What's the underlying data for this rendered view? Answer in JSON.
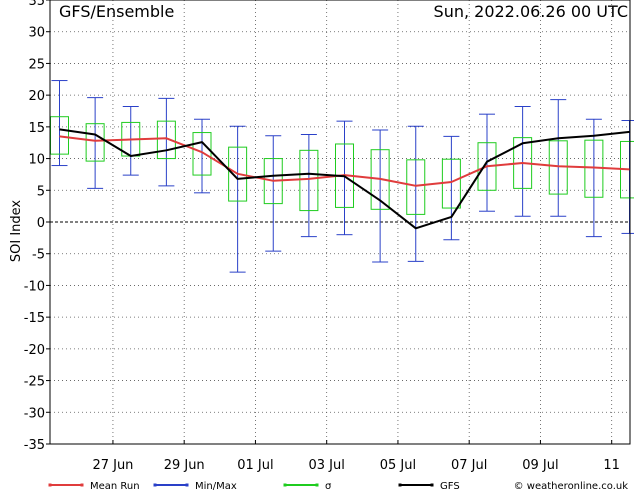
{
  "header": {
    "title": "GFS/Ensemble",
    "date": "Sun, 2022.06.26   00 UTC"
  },
  "credit": "© weatheronline.co.uk",
  "colors": {
    "mean": "#e03c3c",
    "minmax": "#2a40c8",
    "sigma": "#1fcc1f",
    "gfs": "#000000",
    "grid": "#555555"
  },
  "legend": [
    {
      "key": "mean",
      "label": "Mean Run",
      "color": "#e03c3c"
    },
    {
      "key": "minmax",
      "label": "Min/Max",
      "color": "#2a40c8"
    },
    {
      "key": "sigma",
      "label": "σ",
      "color": "#1fcc1f"
    },
    {
      "key": "gfs",
      "label": "GFS",
      "color": "#000000"
    }
  ],
  "chart_data": {
    "type": "line",
    "ylabel": "SOI Index",
    "ylim": [
      -35,
      35
    ],
    "yticks": [
      -35,
      -30,
      -25,
      -20,
      -15,
      -10,
      -5,
      0,
      5,
      10,
      15,
      20,
      25,
      30,
      35
    ],
    "xlim": [
      0,
      16
    ],
    "xticks": [
      {
        "x": 1.5,
        "label": "27 Jun"
      },
      {
        "x": 3.5,
        "label": "29 Jun"
      },
      {
        "x": 5.5,
        "label": "01 Jul"
      },
      {
        "x": 7.5,
        "label": "03 Jul"
      },
      {
        "x": 9.5,
        "label": "05 Jul"
      },
      {
        "x": 11.5,
        "label": "07 Jul"
      },
      {
        "x": 13.5,
        "label": "09 Jul"
      },
      {
        "x": 15.5,
        "label": "11"
      }
    ],
    "gridlines": "dotted",
    "zero_line": "dashed",
    "series": [
      {
        "name": "Mean Run",
        "key": "mean",
        "kind": "line",
        "x": [
          0,
          1,
          2,
          3,
          4,
          5,
          6,
          7,
          8,
          9,
          10,
          11,
          12,
          13,
          14,
          15,
          16
        ],
        "y": [
          13.5,
          12.8,
          13.0,
          13.2,
          11.0,
          7.6,
          6.5,
          6.8,
          7.4,
          6.8,
          5.7,
          6.3,
          8.8,
          9.3,
          8.8,
          8.6,
          8.3
        ]
      },
      {
        "name": "GFS",
        "key": "gfs",
        "kind": "line",
        "x": [
          0,
          1,
          2,
          3,
          4,
          5,
          6,
          7,
          8,
          9,
          10,
          11,
          12,
          13,
          14,
          15,
          16
        ],
        "y": [
          14.6,
          13.8,
          10.4,
          11.3,
          12.6,
          6.8,
          7.3,
          7.6,
          7.2,
          3.4,
          -1.0,
          0.8,
          9.5,
          12.4,
          13.2,
          13.6,
          14.2
        ]
      },
      {
        "name": "Min/Max",
        "key": "minmax",
        "kind": "errorbar",
        "x": [
          0,
          1,
          2,
          3,
          4,
          5,
          6,
          7,
          8,
          9,
          10,
          11,
          12,
          13,
          14,
          15,
          16
        ],
        "min": [
          8.9,
          5.3,
          7.4,
          5.7,
          4.6,
          -7.9,
          -4.6,
          -2.3,
          -2.0,
          -6.3,
          -6.2,
          -2.8,
          1.7,
          0.9,
          0.9,
          -2.3,
          -1.8
        ],
        "max": [
          22.3,
          19.6,
          18.2,
          19.5,
          16.2,
          15.1,
          13.6,
          13.8,
          15.9,
          14.5,
          15.1,
          13.5,
          17.0,
          18.2,
          19.3,
          16.2,
          16.0
        ]
      },
      {
        "name": "σ",
        "key": "sigma",
        "kind": "box",
        "x": [
          0,
          1,
          2,
          3,
          4,
          5,
          6,
          7,
          8,
          9,
          10,
          11,
          12,
          13,
          14,
          15,
          16
        ],
        "low": [
          10.7,
          9.6,
          10.4,
          10.0,
          7.4,
          3.3,
          2.9,
          1.8,
          2.3,
          2.0,
          1.2,
          2.2,
          5.0,
          5.3,
          4.4,
          3.9,
          3.8
        ],
        "high": [
          16.6,
          15.5,
          15.7,
          15.9,
          14.1,
          11.8,
          10.0,
          11.3,
          12.3,
          11.4,
          9.8,
          9.9,
          12.5,
          13.3,
          12.8,
          12.9,
          12.7
        ]
      }
    ]
  }
}
